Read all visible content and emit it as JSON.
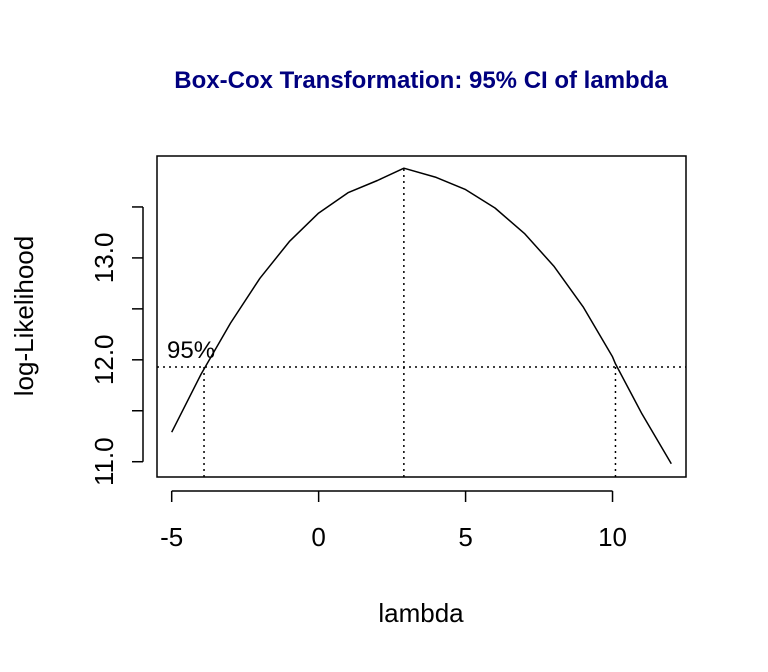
{
  "chart_data": {
    "type": "line",
    "title": "Box-Cox Transformation: 95% CI of lambda",
    "title_color": "#00007f",
    "xlabel": "lambda",
    "ylabel": "log-Likelihood",
    "xlim": [
      -5.5,
      12.5
    ],
    "ylim": [
      10.85,
      14.0
    ],
    "x_ticks": [
      -5,
      0,
      5,
      10
    ],
    "x_tick_labels": [
      "-5",
      "0",
      "5",
      "10"
    ],
    "y_ticks": [
      11.0,
      11.5,
      12.0,
      12.5,
      13.0,
      13.5
    ],
    "y_tick_labels": [
      "11.0",
      "",
      "12.0",
      "",
      "13.0",
      ""
    ],
    "grid": false,
    "series": [
      {
        "x": [
          -5,
          -4,
          -3,
          -2,
          -1,
          0,
          1,
          2,
          2.9,
          4,
          5,
          6,
          7,
          8,
          9,
          10,
          10.1,
          11,
          12
        ],
        "y": [
          11.29,
          11.86,
          12.36,
          12.8,
          13.16,
          13.44,
          13.64,
          13.76,
          13.88,
          13.79,
          13.67,
          13.49,
          13.24,
          12.92,
          12.52,
          12.03,
          11.96,
          11.47,
          10.98
        ]
      }
    ],
    "ci_level_y": 11.93,
    "ci_label": "95%",
    "lambda_hat": 2.9,
    "ci_lower": -3.9,
    "ci_upper": 10.1
  }
}
